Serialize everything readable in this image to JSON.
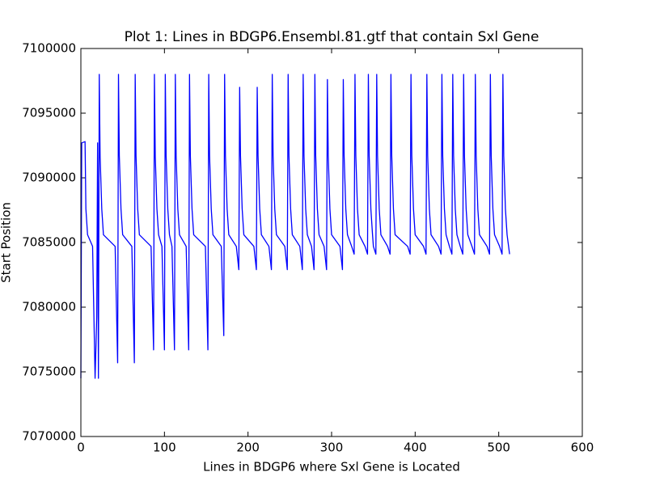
{
  "chart_data": {
    "type": "line",
    "title": "Plot 1: Lines in BDGP6.Ensembl.81.gtf that contain Sxl Gene",
    "x_label": "Lines in BDGP6 where Sxl Gene is Located",
    "y_label": "Start Position",
    "xlim": [
      0,
      600
    ],
    "xticks": [
      0,
      100,
      200,
      300,
      400,
      500,
      600
    ],
    "ylim": [
      7070000,
      7100000
    ],
    "yticks": [
      7070000,
      7075000,
      7080000,
      7085000,
      7090000,
      7095000,
      7100000
    ],
    "grid": false,
    "series": [
      {
        "color": "#0000ff",
        "x": [
          0,
          1,
          5,
          6,
          8,
          14,
          17,
          19,
          20,
          21,
          22,
          23,
          25,
          27,
          41,
          44,
          45,
          46,
          48,
          50,
          61,
          64,
          65,
          66,
          68,
          70,
          84,
          87,
          88,
          89,
          91,
          93,
          97,
          100,
          101,
          102,
          104,
          106,
          109,
          112,
          113,
          114,
          116,
          118,
          126,
          129,
          130,
          131,
          133,
          135,
          149,
          152,
          153,
          154,
          156,
          158,
          168,
          171,
          172,
          173,
          175,
          177,
          186,
          189,
          190,
          191,
          193,
          195,
          207,
          210,
          211,
          212,
          214,
          216,
          225,
          228,
          229,
          230,
          232,
          234,
          244,
          247,
          248,
          249,
          251,
          253,
          262,
          265,
          266,
          267,
          269,
          271,
          276,
          279,
          280,
          281,
          283,
          285,
          291,
          294,
          295,
          296,
          298,
          300,
          310,
          313,
          314,
          315,
          317,
          319,
          324,
          327,
          328,
          329,
          331,
          333,
          340,
          343,
          344,
          345,
          347,
          349,
          350,
          353,
          354,
          355,
          357,
          359,
          367,
          370,
          371,
          372,
          374,
          376,
          391,
          394,
          395,
          396,
          398,
          400,
          410,
          413,
          414,
          415,
          417,
          419,
          428,
          431,
          432,
          433,
          435,
          437,
          441,
          444,
          445,
          446,
          448,
          450,
          454,
          457,
          458,
          459,
          461,
          463,
          468,
          471,
          472,
          473,
          475,
          477,
          486,
          489,
          490,
          491,
          493,
          495,
          501,
          504,
          505,
          506,
          508,
          510,
          513
        ],
        "values": [
          7074500,
          7092700,
          7092800,
          7087600,
          7085600,
          7084700,
          7074500,
          7079300,
          7092700,
          7074500,
          7098000,
          7091700,
          7087600,
          7085600,
          7084700,
          7075700,
          7098000,
          7091700,
          7087600,
          7085600,
          7084700,
          7075700,
          7098000,
          7091700,
          7087600,
          7085600,
          7084700,
          7076700,
          7098000,
          7091700,
          7087600,
          7085600,
          7084700,
          7076700,
          7098000,
          7091700,
          7087600,
          7085600,
          7084700,
          7076700,
          7098000,
          7091700,
          7087600,
          7085600,
          7084700,
          7076700,
          7098000,
          7091700,
          7087600,
          7085600,
          7084700,
          7076700,
          7098000,
          7091700,
          7087600,
          7085600,
          7084700,
          7077800,
          7098000,
          7091700,
          7087600,
          7085600,
          7084700,
          7082900,
          7097000,
          7091700,
          7087600,
          7085600,
          7084700,
          7082900,
          7097000,
          7091700,
          7087600,
          7085600,
          7084700,
          7082900,
          7098000,
          7091700,
          7087600,
          7085600,
          7084700,
          7082900,
          7098000,
          7091700,
          7087600,
          7085600,
          7084700,
          7082900,
          7098000,
          7091700,
          7087600,
          7085600,
          7084700,
          7082900,
          7098000,
          7091700,
          7087600,
          7085600,
          7084700,
          7082900,
          7097600,
          7091700,
          7087600,
          7085600,
          7084700,
          7082900,
          7097600,
          7091700,
          7087600,
          7085600,
          7084700,
          7084100,
          7098000,
          7091700,
          7087600,
          7085600,
          7084700,
          7084100,
          7098000,
          7091700,
          7087600,
          7085600,
          7084700,
          7084100,
          7098000,
          7091700,
          7087600,
          7085600,
          7084700,
          7084100,
          7098000,
          7091700,
          7087600,
          7085600,
          7084700,
          7084100,
          7098000,
          7091700,
          7087600,
          7085600,
          7084700,
          7084100,
          7098000,
          7091700,
          7087600,
          7085600,
          7084700,
          7084100,
          7098000,
          7091700,
          7087600,
          7085600,
          7084700,
          7084100,
          7098000,
          7091700,
          7087600,
          7085600,
          7084700,
          7084100,
          7098000,
          7091700,
          7087600,
          7085600,
          7084700,
          7084100,
          7098000,
          7091700,
          7087600,
          7085600,
          7084700,
          7084100,
          7098000,
          7091700,
          7087600,
          7085600,
          7084700,
          7084100,
          7098000,
          7091700,
          7087600,
          7085600,
          7084100
        ]
      }
    ]
  }
}
